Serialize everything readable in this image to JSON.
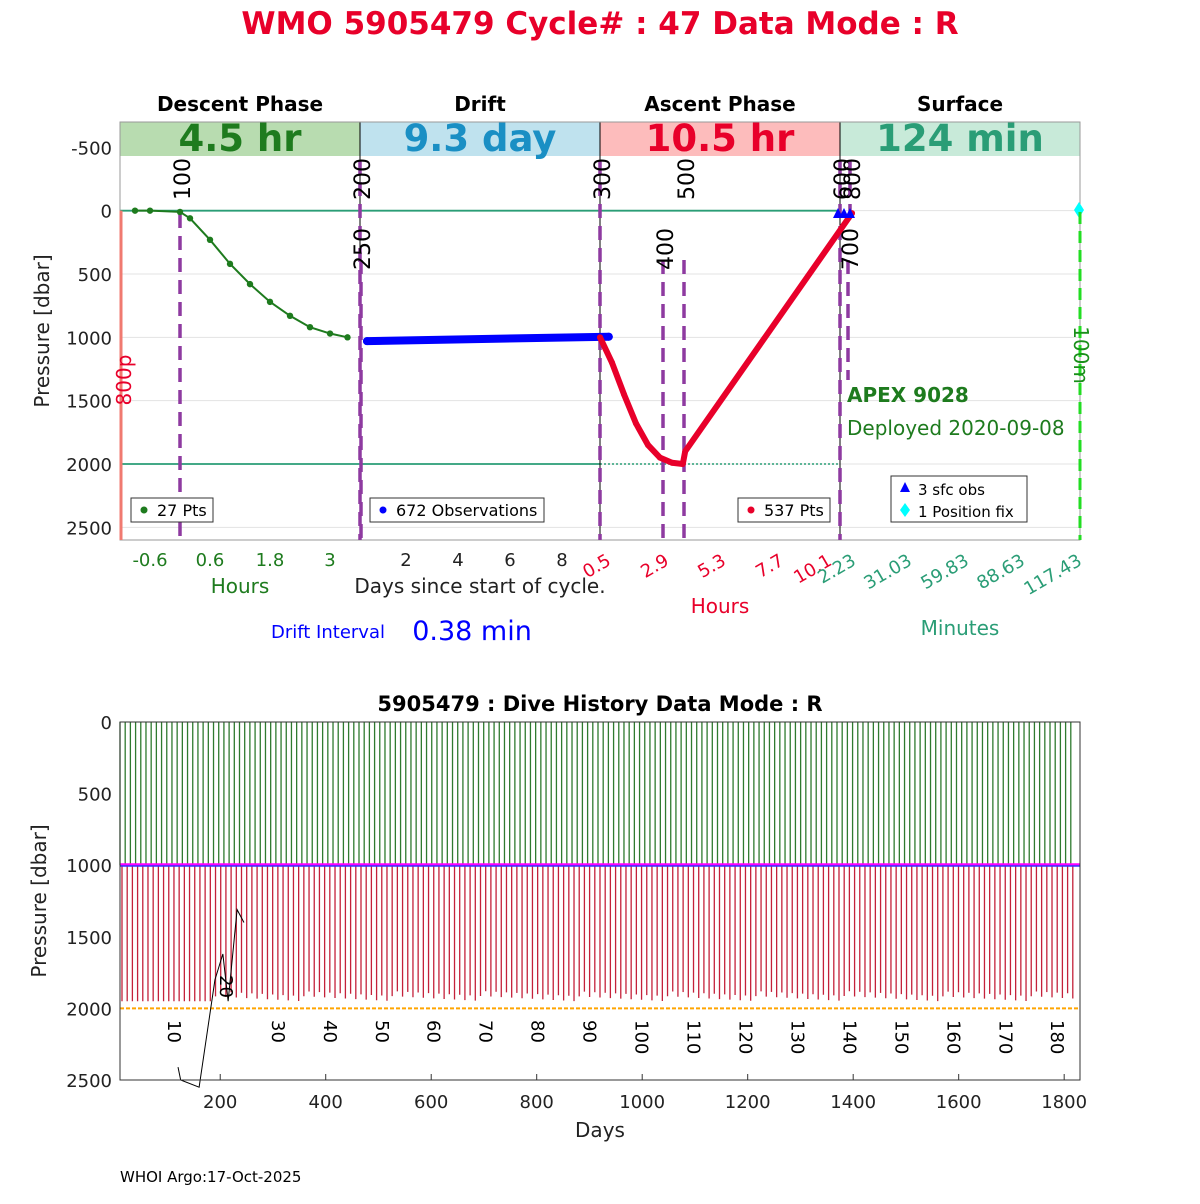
{
  "title": "WMO 5905479   Cycle# : 47   Data Mode : R",
  "footer": "WHOI Argo:17-Oct-2025",
  "colors": {
    "title": "#e8002a",
    "descent": "#1e7b1e",
    "drift": "#0000ff",
    "ascent": "#e8002a",
    "surface": "#2a9d76",
    "marker": "#8e3aa0",
    "threshold": "#f07a70",
    "position": "#00ffff",
    "gps": "#22dd22",
    "park": "#ff00ff",
    "profile": "#ffa500"
  },
  "chart_data": [
    {
      "type": "line",
      "name": "cycle",
      "ylabel": "Pressure [dbar]",
      "ylim": [
        2600,
        -700
      ],
      "yticks": [
        -500,
        0,
        500,
        1000,
        1500,
        2000,
        2500
      ],
      "reference_lines": [
        0,
        2000
      ],
      "phases": [
        {
          "label": "Descent Phase",
          "duration": "4.5 hr",
          "unit_label": "Hours",
          "ticks": [
            "-0.6",
            "0.6",
            "1.8",
            "3"
          ],
          "legend": "27 Pts"
        },
        {
          "label": "Drift",
          "duration": "9.3 day",
          "unit_label": "",
          "ticks": [
            "2",
            "4",
            "6",
            "8"
          ],
          "legend": "672 Observations"
        },
        {
          "label": "Ascent Phase",
          "duration": "10.5 hr",
          "unit_label": "Hours",
          "ticks": [
            "0.5",
            "2.9",
            "5.3",
            "7.7",
            "10.1"
          ],
          "legend": "537 Pts"
        },
        {
          "label": "Surface",
          "duration": "124 min",
          "unit_label": "Minutes",
          "ticks": [
            "2.23",
            "31.03",
            "59.83",
            "88.63",
            "117.43"
          ],
          "legend": [
            "3 sfc obs",
            "1 Position fix"
          ]
        }
      ],
      "xlabel_center": "Days since start of cycle.",
      "drift_interval_label": "Drift Interval",
      "drift_interval_value": "0.38 min",
      "markers": [
        "100",
        "200",
        "250",
        "300",
        "400",
        "500",
        "600",
        "700",
        "800"
      ],
      "threshold_label": "800p",
      "gps_label": "100m",
      "float_name": "APEX 9028",
      "deployed": "Deployed 2020-09-08",
      "descent_points": [
        [
          -0.9,
          0
        ],
        [
          -0.6,
          0
        ],
        [
          0.0,
          10
        ],
        [
          0.2,
          60
        ],
        [
          0.6,
          230
        ],
        [
          1.0,
          420
        ],
        [
          1.4,
          580
        ],
        [
          1.8,
          720
        ],
        [
          2.2,
          830
        ],
        [
          2.6,
          920
        ],
        [
          3.0,
          970
        ],
        [
          3.35,
          1000
        ]
      ],
      "drift_days": [
        0.5,
        9.8
      ],
      "drift_pressure_start": 1030,
      "drift_pressure_end": 995,
      "ascent_points": [
        [
          0.0,
          1000
        ],
        [
          0.5,
          1200
        ],
        [
          1.0,
          1450
        ],
        [
          1.5,
          1680
        ],
        [
          2.0,
          1850
        ],
        [
          2.5,
          1950
        ],
        [
          3.0,
          1990
        ],
        [
          3.45,
          2000
        ],
        [
          3.55,
          1900
        ],
        [
          10.5,
          20
        ]
      ]
    },
    {
      "type": "bar",
      "name": "dive-history",
      "title": "5905479 : Dive History      Data Mode : R",
      "xlabel": "Days",
      "ylabel": "Pressure [dbar]",
      "xlim": [
        10,
        1830
      ],
      "ylim": [
        2500,
        0
      ],
      "xticks": [
        200,
        400,
        600,
        800,
        1000,
        1200,
        1400,
        1600,
        1800
      ],
      "yticks": [
        0,
        500,
        1000,
        1500,
        2000,
        2500
      ],
      "park_pressure": 1000,
      "profile_pressure": 2000,
      "cycle_count": 184,
      "cycle_labels": [
        "10",
        "20",
        "30",
        "40",
        "50",
        "60",
        "70",
        "80",
        "90",
        "100",
        "110",
        "120",
        "130",
        "140",
        "150",
        "160",
        "170",
        "180"
      ]
    }
  ]
}
